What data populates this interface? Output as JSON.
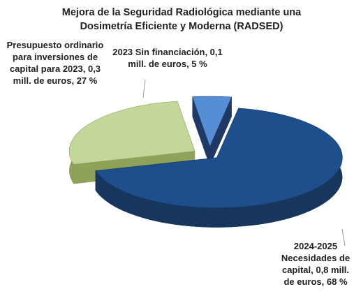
{
  "chart_data": {
    "type": "pie",
    "title": "Mejora de la Seguridad Radiológica mediante una Dosimetría Eficiente y Moderna (RADSED)",
    "categories": [
      "2024-2025 Necesidades de capital, 0,8 mill. de euros, 68 %",
      "Presupuesto ordinario para inversiones de capital para 2023, 0,3 mill. de euros, 27 %",
      "2023 Sin financiación, 0,1 mill. de euros, 5 %"
    ],
    "values": [
      68,
      27,
      5
    ],
    "colors": [
      "#1f4e8c",
      "#c4d79b",
      "#558ed5"
    ]
  }
}
